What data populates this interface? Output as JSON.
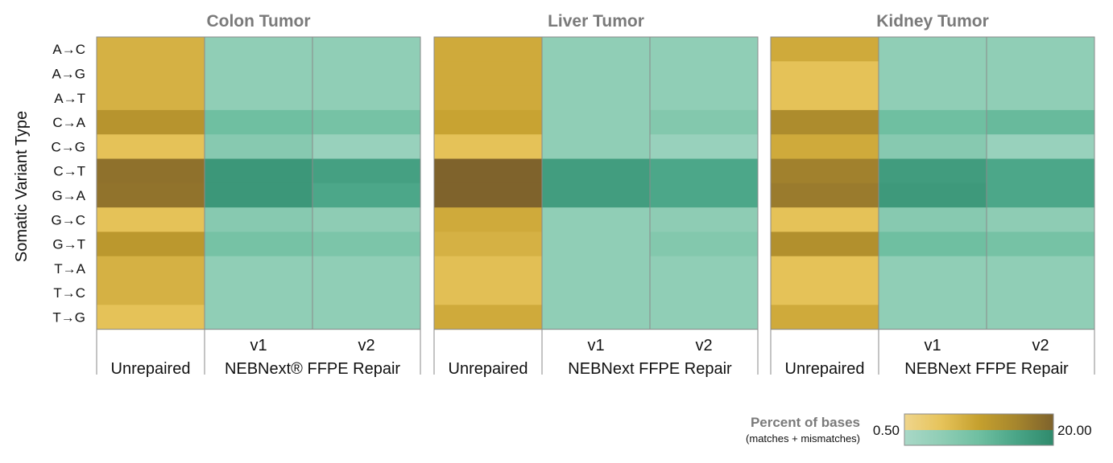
{
  "chart_data": {
    "type": "heatmap",
    "ylabel": "Somatic Variant Type",
    "rows": [
      "A→C",
      "A→G",
      "A→T",
      "C→A",
      "C→G",
      "C→T",
      "G→A",
      "G→C",
      "G→T",
      "T→A",
      "T→C",
      "T→G"
    ],
    "panels": [
      {
        "title": "Colon Tumor",
        "unrepaired_label": "Unrepaired",
        "repair_label": "NEBNext® FFPE Repair",
        "version_labels": [
          "v1",
          "v2"
        ],
        "unrepaired": [
          2.0,
          2.0,
          2.0,
          4.8,
          1.3,
          13.5,
          13.0,
          1.3,
          4.2,
          2.0,
          2.0,
          1.3
        ],
        "v1": [
          1.2,
          1.2,
          1.2,
          3.2,
          1.6,
          13.0,
          13.0,
          1.6,
          2.6,
          1.2,
          1.2,
          1.2
        ],
        "v2": [
          1.2,
          1.2,
          1.2,
          2.6,
          0.9,
          9.5,
          7.5,
          1.3,
          2.2,
          1.2,
          1.2,
          1.2
        ]
      },
      {
        "title": "Liver Tumor",
        "unrepaired_label": "Unrepaired",
        "repair_label": "NEBNext FFPE Repair",
        "version_labels": [
          "v1",
          "v2"
        ],
        "unrepaired": [
          2.4,
          2.4,
          2.4,
          2.9,
          1.3,
          19.5,
          19.5,
          2.4,
          2.0,
          1.4,
          1.4,
          2.4
        ],
        "v1": [
          1.2,
          1.2,
          1.2,
          1.2,
          1.2,
          10.5,
          10.5,
          1.2,
          1.2,
          1.2,
          1.2,
          1.2
        ],
        "v2": [
          1.2,
          1.2,
          1.2,
          1.8,
          0.9,
          7.5,
          7.5,
          1.3,
          1.8,
          1.2,
          1.2,
          1.2
        ]
      },
      {
        "title": "Kidney Tumor",
        "unrepaired_label": "Unrepaired",
        "repair_label": "NEBNext FFPE Repair",
        "version_labels": [
          "v1",
          "v2"
        ],
        "unrepaired": [
          2.4,
          1.3,
          1.3,
          6.5,
          2.4,
          9.0,
          10.5,
          1.3,
          5.5,
          1.3,
          1.3,
          2.4
        ],
        "v1": [
          1.2,
          1.2,
          1.2,
          3.2,
          1.6,
          11.0,
          12.0,
          1.6,
          3.2,
          1.2,
          1.2,
          1.2
        ],
        "v2": [
          1.2,
          1.2,
          1.2,
          3.8,
          0.9,
          7.5,
          7.5,
          1.3,
          2.6,
          1.2,
          1.2,
          1.2
        ]
      }
    ],
    "legend": {
      "title": "Percent of bases",
      "subtitle": "(matches + mismatches)",
      "min_label": "0.50",
      "max_label": "20.00",
      "min": 0.5,
      "max": 20.0,
      "unrepaired_colors": [
        "#efd58c",
        "#e6c35a",
        "#c5a02e",
        "#a6862d",
        "#7e622c"
      ],
      "repaired_colors": [
        "#a9d8c7",
        "#8fcdb5",
        "#6fbfa1",
        "#4aa587",
        "#2f8a6c"
      ]
    }
  }
}
